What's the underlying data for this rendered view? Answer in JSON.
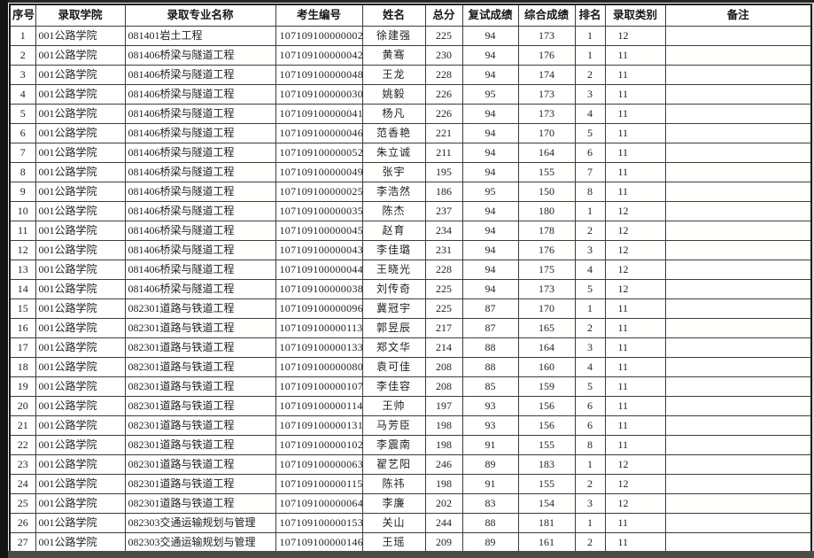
{
  "colors": {
    "page_background": "#f6f6f4",
    "table_background": "#fffffe",
    "grid_border": "#3c3c3c",
    "outer_border": "#1e1e1e",
    "text": "#1f1f1f",
    "photo_edge_left": "#141414",
    "photo_edge_bottom": "#4e4a45"
  },
  "table": {
    "columns": [
      {
        "key": "serial",
        "label": "序号"
      },
      {
        "key": "college",
        "label": "录取学院"
      },
      {
        "key": "major",
        "label": "录取专业名称"
      },
      {
        "key": "candidate-no",
        "label": "考生编号"
      },
      {
        "key": "name",
        "label": "姓名"
      },
      {
        "key": "total-score",
        "label": "总分"
      },
      {
        "key": "retest-score",
        "label": "复试成绩"
      },
      {
        "key": "composite-score",
        "label": "综合成绩"
      },
      {
        "key": "rank",
        "label": "排名"
      },
      {
        "key": "admission-type",
        "label": "录取类别"
      },
      {
        "key": "remark",
        "label": "备注"
      }
    ],
    "rows": [
      [
        1,
        "001公路学院",
        "081401岩土工程",
        "107109100000002",
        "徐建强",
        225,
        94,
        173,
        1,
        12,
        ""
      ],
      [
        2,
        "001公路学院",
        "081406桥梁与隧道工程",
        "107109100000042",
        "黄骞",
        230,
        94,
        176,
        1,
        11,
        ""
      ],
      [
        3,
        "001公路学院",
        "081406桥梁与隧道工程",
        "107109100000048",
        "王龙",
        228,
        94,
        174,
        2,
        11,
        ""
      ],
      [
        4,
        "001公路学院",
        "081406桥梁与隧道工程",
        "107109100000030",
        "姚毅",
        226,
        95,
        173,
        3,
        11,
        ""
      ],
      [
        5,
        "001公路学院",
        "081406桥梁与隧道工程",
        "107109100000041",
        "杨凡",
        226,
        94,
        173,
        4,
        11,
        ""
      ],
      [
        6,
        "001公路学院",
        "081406桥梁与隧道工程",
        "107109100000046",
        "范香艳",
        221,
        94,
        170,
        5,
        11,
        ""
      ],
      [
        7,
        "001公路学院",
        "081406桥梁与隧道工程",
        "107109100000052",
        "朱立诚",
        211,
        94,
        164,
        6,
        11,
        ""
      ],
      [
        8,
        "001公路学院",
        "081406桥梁与隧道工程",
        "107109100000049",
        "张宇",
        195,
        94,
        155,
        7,
        11,
        ""
      ],
      [
        9,
        "001公路学院",
        "081406桥梁与隧道工程",
        "107109100000025",
        "李浩然",
        186,
        95,
        150,
        8,
        11,
        ""
      ],
      [
        10,
        "001公路学院",
        "081406桥梁与隧道工程",
        "107109100000035",
        "陈杰",
        237,
        94,
        180,
        1,
        12,
        ""
      ],
      [
        11,
        "001公路学院",
        "081406桥梁与隧道工程",
        "107109100000045",
        "赵育",
        234,
        94,
        178,
        2,
        12,
        ""
      ],
      [
        12,
        "001公路学院",
        "081406桥梁与隧道工程",
        "107109100000043",
        "李佳璐",
        231,
        94,
        176,
        3,
        12,
        ""
      ],
      [
        13,
        "001公路学院",
        "081406桥梁与隧道工程",
        "107109100000044",
        "王晓光",
        228,
        94,
        175,
        4,
        12,
        ""
      ],
      [
        14,
        "001公路学院",
        "081406桥梁与隧道工程",
        "107109100000038",
        "刘传奇",
        225,
        94,
        173,
        5,
        12,
        ""
      ],
      [
        15,
        "001公路学院",
        "082301道路与铁道工程",
        "107109100000096",
        "冀冠宇",
        225,
        87,
        170,
        1,
        11,
        ""
      ],
      [
        16,
        "001公路学院",
        "082301道路与铁道工程",
        "107109100000113",
        "郭昱辰",
        217,
        87,
        165,
        2,
        11,
        ""
      ],
      [
        17,
        "001公路学院",
        "082301道路与铁道工程",
        "107109100000133",
        "郑文华",
        214,
        88,
        164,
        3,
        11,
        ""
      ],
      [
        18,
        "001公路学院",
        "082301道路与铁道工程",
        "107109100000080",
        "袁可佳",
        208,
        88,
        160,
        4,
        11,
        ""
      ],
      [
        19,
        "001公路学院",
        "082301道路与铁道工程",
        "107109100000107",
        "李佳容",
        208,
        85,
        159,
        5,
        11,
        ""
      ],
      [
        20,
        "001公路学院",
        "082301道路与铁道工程",
        "107109100000114",
        "王帅",
        197,
        93,
        156,
        6,
        11,
        ""
      ],
      [
        21,
        "001公路学院",
        "082301道路与铁道工程",
        "107109100000131",
        "马芳臣",
        198,
        93,
        156,
        6,
        11,
        ""
      ],
      [
        22,
        "001公路学院",
        "082301道路与铁道工程",
        "107109100000102",
        "李震南",
        198,
        91,
        155,
        8,
        11,
        ""
      ],
      [
        23,
        "001公路学院",
        "082301道路与铁道工程",
        "107109100000063",
        "翟艺阳",
        246,
        89,
        183,
        1,
        12,
        ""
      ],
      [
        24,
        "001公路学院",
        "082301道路与铁道工程",
        "107109100000115",
        "陈祎",
        198,
        91,
        155,
        2,
        12,
        ""
      ],
      [
        25,
        "001公路学院",
        "082301道路与铁道工程",
        "107109100000064",
        "李廉",
        202,
        83,
        154,
        3,
        12,
        ""
      ],
      [
        26,
        "001公路学院",
        "082303交通运输规划与管理",
        "107109100000153",
        "关山",
        244,
        88,
        181,
        1,
        11,
        ""
      ],
      [
        27,
        "001公路学院",
        "082303交通运输规划与管理",
        "107109100000146",
        "王瑶",
        209,
        89,
        161,
        2,
        11,
        ""
      ]
    ]
  }
}
